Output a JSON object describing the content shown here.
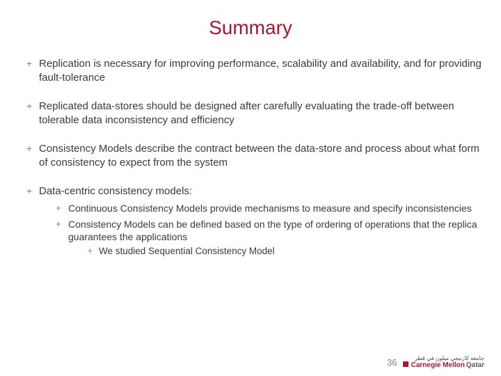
{
  "title": "Summary",
  "bullets": [
    {
      "text": "Replication is necessary for improving performance, scalability and availability, and for providing fault-tolerance"
    },
    {
      "text": "Replicated data-stores should be designed after carefully evaluating the trade-off between tolerable data inconsistency and efficiency"
    },
    {
      "text": "Consistency Models describe the contract between the data-store and process about what form of consistency to expect from the system"
    },
    {
      "text": "Data-centric consistency models:",
      "sub": [
        {
          "text": "Continuous Consistency Models provide mechanisms to measure and specify inconsistencies"
        },
        {
          "text": "Consistency Models can be defined based on the type of ordering of operations that the replica guarantees the applications",
          "sub": [
            {
              "text": "We studied Sequential Consistency Model"
            }
          ]
        }
      ]
    }
  ],
  "pageNumber": "36",
  "logo": {
    "arabic": "جامعة كارنيجي ميلون في قطر",
    "main1": "Carnegie Mellon",
    "main2": "Qatar"
  },
  "colors": {
    "title": "#a01a30",
    "text": "#3a3a3a",
    "bulletMarker": "#808080",
    "background": "#ffffff"
  }
}
